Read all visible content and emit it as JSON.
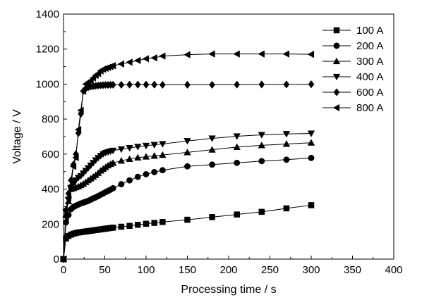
{
  "chart_data": {
    "type": "line",
    "title": "",
    "xlabel": "Processing time / s",
    "ylabel": "Voltage / V",
    "xlim": [
      0,
      400
    ],
    "ylim": [
      0,
      1400
    ],
    "xticks": [
      0,
      50,
      100,
      150,
      200,
      250,
      300,
      350,
      400
    ],
    "yticks": [
      0,
      200,
      400,
      600,
      800,
      1000,
      1200,
      1400
    ],
    "grid": false,
    "legend_position": "top-right",
    "series": [
      {
        "name": "100 A",
        "marker": "square",
        "x": [
          0,
          3,
          6,
          9,
          12,
          15,
          18,
          21,
          24,
          27,
          30,
          33,
          36,
          39,
          42,
          45,
          48,
          51,
          54,
          57,
          60,
          70,
          80,
          90,
          100,
          110,
          120,
          150,
          180,
          210,
          240,
          270,
          300
        ],
        "y": [
          0,
          118,
          132,
          140,
          145,
          149,
          152,
          154,
          156,
          158,
          160,
          162,
          164,
          166,
          168,
          170,
          172,
          174,
          176,
          178,
          180,
          185,
          190,
          196,
          202,
          207,
          212,
          225,
          240,
          255,
          270,
          290,
          308
        ]
      },
      {
        "name": "200 A",
        "marker": "circle",
        "x": [
          0,
          3,
          6,
          9,
          12,
          15,
          18,
          21,
          24,
          27,
          30,
          33,
          36,
          39,
          42,
          45,
          48,
          51,
          54,
          57,
          60,
          70,
          80,
          90,
          100,
          110,
          120,
          150,
          180,
          210,
          240,
          270,
          300
        ],
        "y": [
          0,
          210,
          252,
          285,
          298,
          305,
          312,
          318,
          323,
          328,
          333,
          340,
          347,
          353,
          360,
          368,
          375,
          383,
          390,
          397,
          405,
          428,
          450,
          470,
          485,
          497,
          508,
          530,
          540,
          550,
          560,
          568,
          578
        ]
      },
      {
        "name": "300 A",
        "marker": "triangle-up",
        "x": [
          0,
          3,
          6,
          9,
          12,
          15,
          18,
          21,
          24,
          27,
          30,
          33,
          36,
          39,
          42,
          45,
          48,
          51,
          54,
          57,
          60,
          70,
          80,
          90,
          100,
          110,
          120,
          150,
          180,
          210,
          240,
          270,
          300
        ],
        "y": [
          0,
          255,
          330,
          400,
          405,
          410,
          415,
          422,
          430,
          440,
          450,
          460,
          470,
          480,
          492,
          505,
          515,
          525,
          535,
          543,
          550,
          562,
          572,
          580,
          585,
          590,
          595,
          610,
          625,
          640,
          650,
          658,
          665
        ]
      },
      {
        "name": "400 A",
        "marker": "triangle-down",
        "x": [
          0,
          3,
          6,
          9,
          12,
          15,
          18,
          21,
          24,
          27,
          30,
          33,
          36,
          39,
          42,
          45,
          48,
          51,
          54,
          57,
          60,
          70,
          80,
          90,
          100,
          110,
          120,
          150,
          180,
          210,
          240,
          270,
          300
        ],
        "y": [
          0,
          270,
          340,
          400,
          430,
          450,
          465,
          475,
          490,
          505,
          520,
          535,
          550,
          565,
          578,
          590,
          600,
          607,
          612,
          616,
          620,
          628,
          635,
          642,
          648,
          653,
          658,
          675,
          690,
          702,
          710,
          715,
          718
        ]
      },
      {
        "name": "600 A",
        "marker": "diamond",
        "x": [
          0,
          3,
          6,
          9,
          12,
          15,
          18,
          21,
          24,
          27,
          30,
          33,
          36,
          39,
          42,
          45,
          48,
          51,
          54,
          57,
          60,
          70,
          80,
          90,
          100,
          110,
          120,
          150,
          180,
          210,
          240,
          270,
          300
        ],
        "y": [
          0,
          280,
          375,
          450,
          540,
          600,
          720,
          830,
          960,
          975,
          982,
          986,
          988,
          990,
          992,
          993,
          994,
          995,
          995,
          996,
          996,
          996,
          997,
          997,
          997,
          997,
          996,
          996,
          996,
          997,
          998,
          998,
          999
        ]
      },
      {
        "name": "800 A",
        "marker": "triangle-left",
        "x": [
          0,
          3,
          6,
          9,
          12,
          15,
          18,
          21,
          24,
          27,
          30,
          33,
          36,
          39,
          42,
          45,
          48,
          51,
          54,
          57,
          60,
          70,
          80,
          90,
          100,
          110,
          120,
          150,
          180,
          210,
          240,
          270,
          300
        ],
        "y": [
          0,
          240,
          350,
          420,
          530,
          580,
          740,
          850,
          960,
          1000,
          1010,
          1020,
          1035,
          1050,
          1060,
          1075,
          1085,
          1090,
          1095,
          1100,
          1105,
          1115,
          1125,
          1135,
          1145,
          1150,
          1160,
          1168,
          1172,
          1172,
          1172,
          1172,
          1170
        ]
      }
    ]
  }
}
